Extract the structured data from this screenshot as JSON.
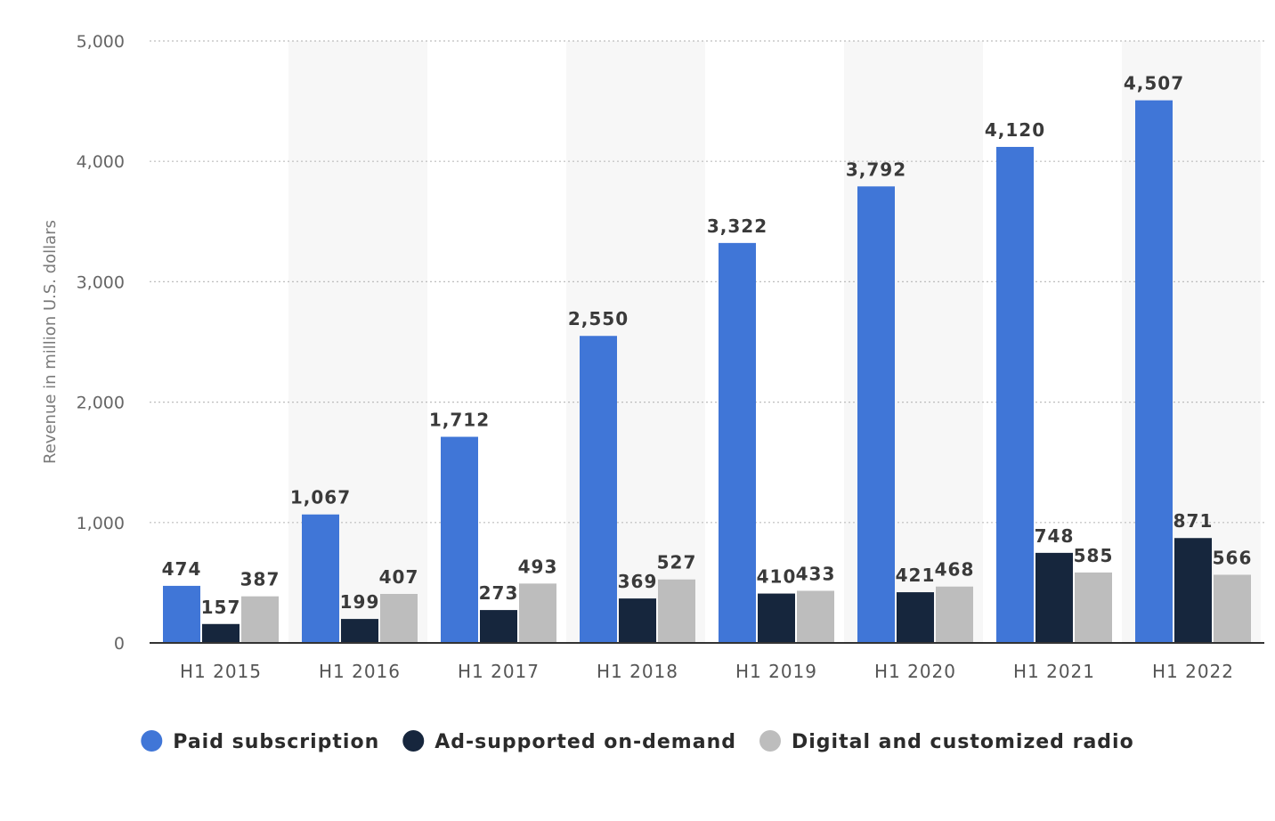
{
  "chart_data": {
    "type": "bar",
    "categories": [
      "H1 2015",
      "H1 2016",
      "H1 2017",
      "H1 2018",
      "H1 2019",
      "H1 2020",
      "H1 2021",
      "H1 2022"
    ],
    "series": [
      {
        "name": "Paid subscription",
        "color": "#4076d7",
        "values": [
          474,
          1067,
          1712,
          2550,
          3322,
          3792,
          4120,
          4507
        ]
      },
      {
        "name": "Ad-supported on-demand",
        "color": "#16263d",
        "values": [
          157,
          199,
          273,
          369,
          410,
          421,
          748,
          871
        ]
      },
      {
        "name": "Digital and customized radio",
        "color": "#bdbdbd",
        "values": [
          387,
          407,
          493,
          527,
          433,
          468,
          585,
          566
        ]
      }
    ],
    "yticks": [
      0,
      1000,
      2000,
      3000,
      4000,
      5000
    ],
    "ylim": [
      0,
      5000
    ],
    "ylabel": "Revenue in million U.S. dollars",
    "xlabel": "",
    "grid": true,
    "legend_position": "bottom-center"
  }
}
